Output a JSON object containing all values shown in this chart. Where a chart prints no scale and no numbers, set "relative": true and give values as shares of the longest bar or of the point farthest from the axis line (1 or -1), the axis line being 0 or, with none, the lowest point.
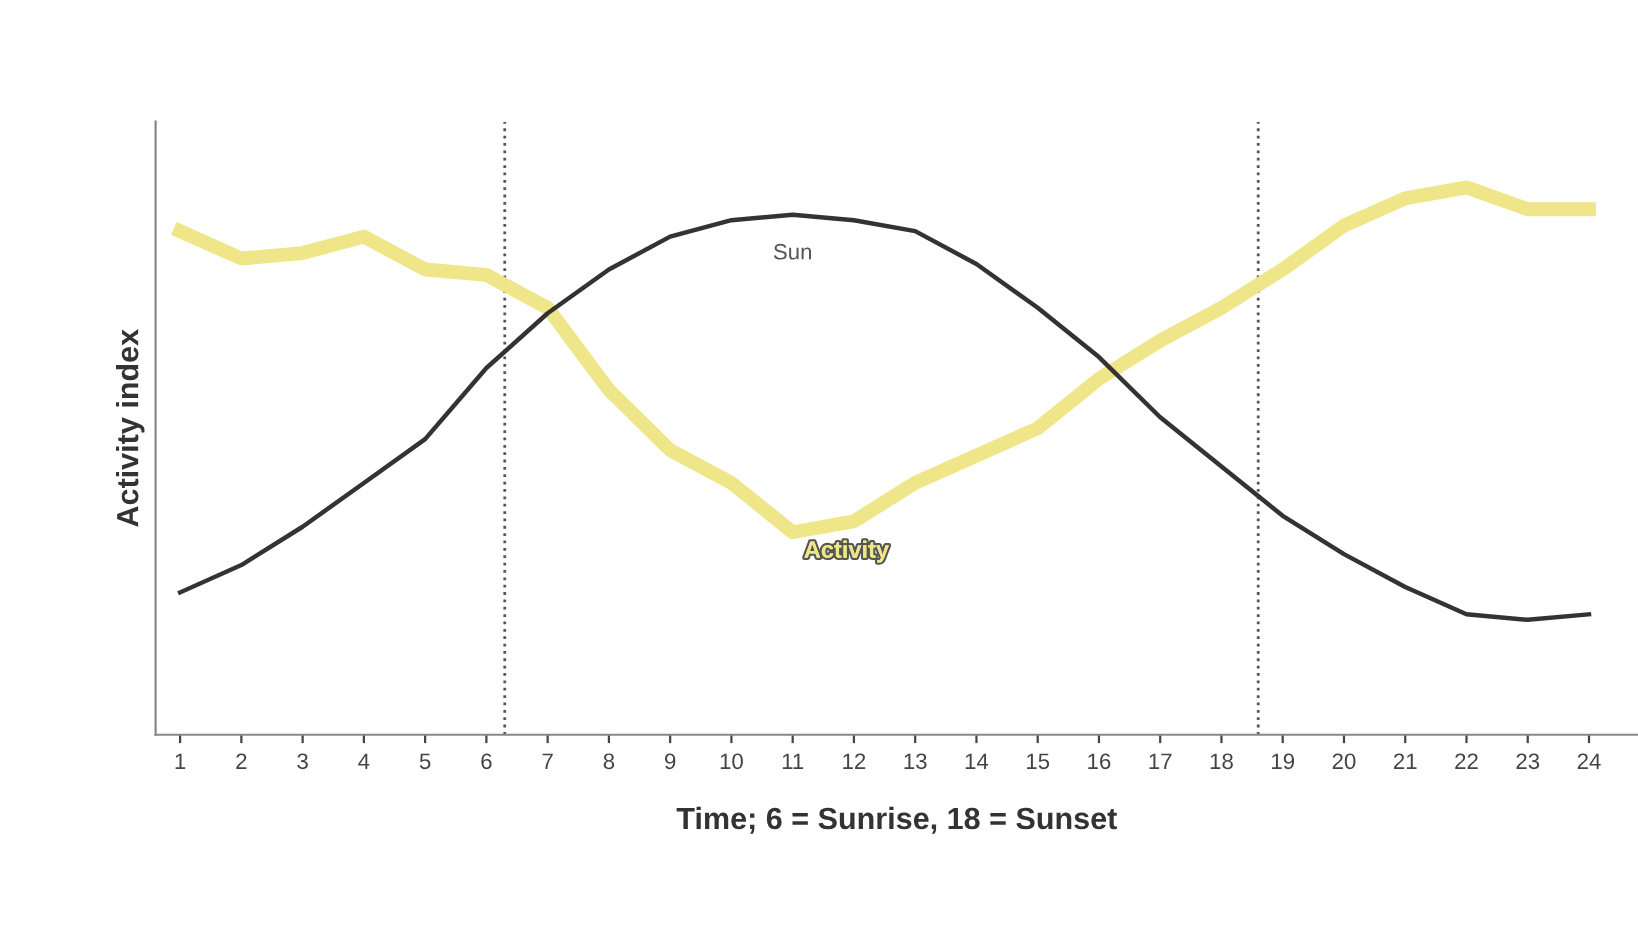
{
  "chart_data": {
    "type": "line",
    "relative": true,
    "xlabel": "Time; 6 = Sunrise, 18 = Sunset",
    "ylabel": "Activity index",
    "x": [
      1,
      2,
      3,
      4,
      5,
      6,
      7,
      8,
      9,
      10,
      11,
      12,
      13,
      14,
      15,
      16,
      17,
      18,
      19,
      20,
      21,
      22,
      23,
      24
    ],
    "xlim": [
      0.6,
      24.8
    ],
    "xticks": [
      1,
      2,
      3,
      4,
      5,
      6,
      7,
      8,
      9,
      10,
      11,
      12,
      13,
      14,
      15,
      16,
      17,
      18,
      19,
      20,
      21,
      22,
      23,
      24
    ],
    "series": [
      {
        "name": "Activity",
        "color": "#efe68a",
        "values": [
          0.92,
          0.87,
          0.88,
          0.91,
          0.85,
          0.84,
          0.78,
          0.63,
          0.52,
          0.46,
          0.37,
          0.39,
          0.46,
          0.51,
          0.56,
          0.65,
          0.72,
          0.78,
          0.85,
          0.93,
          0.98,
          1,
          0.96,
          0.96
        ]
      },
      {
        "name": "Sun",
        "color": "#333333",
        "values": [
          0.26,
          0.31,
          0.38,
          0.46,
          0.54,
          0.67,
          0.77,
          0.85,
          0.91,
          0.94,
          0.95,
          0.94,
          0.92,
          0.86,
          0.78,
          0.69,
          0.58,
          0.49,
          0.4,
          0.33,
          0.27,
          0.22,
          0.21,
          0.22
        ]
      }
    ],
    "ref_lines": [
      {
        "axis": "x",
        "value": 6.3,
        "color": "#555555",
        "line_style": "dotted"
      },
      {
        "axis": "x",
        "value": 18.6,
        "color": "#555555",
        "line_style": "dotted"
      }
    ],
    "grid": false,
    "marker": "none",
    "line_style": "solid"
  }
}
